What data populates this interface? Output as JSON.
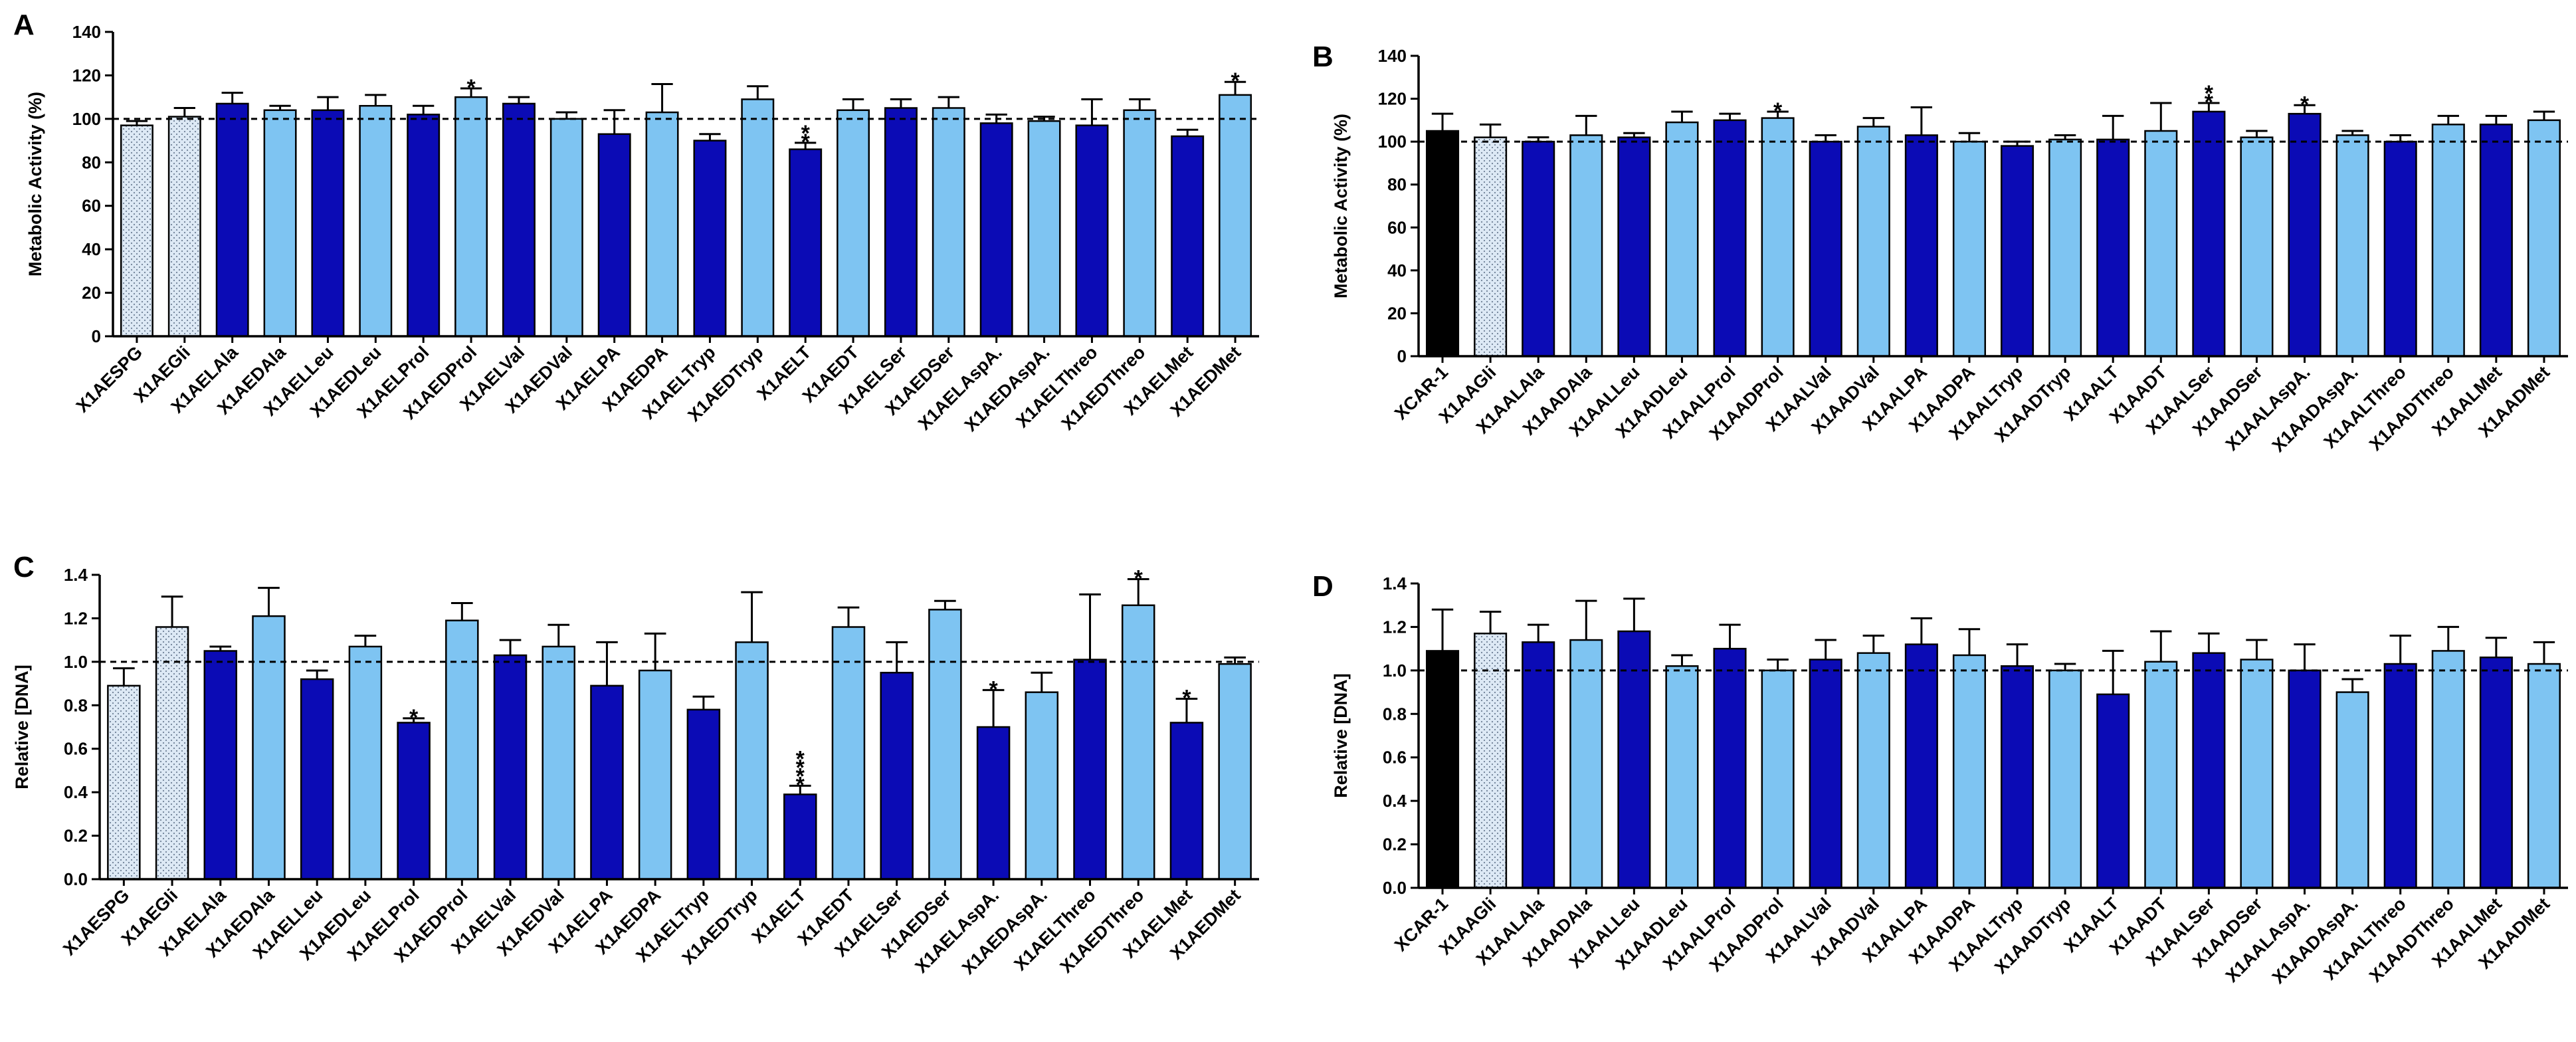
{
  "colors": {
    "dark_blue": "#0b0bb5",
    "light_blue": "#7ec4f2",
    "dotted_fill": "#dde9f5",
    "black": "#000000",
    "outline": "#000000"
  },
  "chart_data": [
    {
      "type": "bar",
      "panel": "A",
      "title": "",
      "xlabel": "",
      "ylabel": "Metabolic Activity (%)",
      "ylim": [
        0,
        140
      ],
      "yticks": [
        0,
        20,
        40,
        60,
        80,
        100,
        120,
        140
      ],
      "ytick_labels": [
        "0",
        "20",
        "40",
        "60",
        "80",
        "100",
        "120",
        "140"
      ],
      "reference_line": 100,
      "categories": [
        "X1AESPG",
        "X1AEGli",
        "X1AELAla",
        "X1AEDAla",
        "X1AELLeu",
        "X1AEDLeu",
        "X1AELProl",
        "X1AEDProl",
        "X1AELVal",
        "X1AEDVal",
        "X1AELPA",
        "X1AEDPA",
        "X1AELTryp",
        "X1AEDTryp",
        "X1AELT",
        "X1AEDT",
        "X1AELSer",
        "X1AEDSer",
        "X1AELAspA.",
        "X1AEDAspA.",
        "X1AELThreo",
        "X1AEDThreo",
        "X1AELMet",
        "X1AEDMet"
      ],
      "values": [
        97,
        101,
        107,
        104,
        104,
        106,
        102,
        110,
        107,
        100,
        93,
        103,
        90,
        109,
        86,
        104,
        105,
        105,
        98,
        99,
        97,
        104,
        92,
        111
      ],
      "errors": [
        2,
        4,
        5,
        2,
        6,
        5,
        4,
        4,
        3,
        3,
        11,
        13,
        3,
        6,
        3,
        5,
        4,
        5,
        4,
        2,
        12,
        5,
        3,
        6
      ],
      "fills": [
        "dotted",
        "dotted",
        "dark",
        "light",
        "dark",
        "light",
        "dark",
        "light",
        "dark",
        "light",
        "dark",
        "light",
        "dark",
        "light",
        "dark",
        "light",
        "dark",
        "light",
        "dark",
        "light",
        "dark",
        "light",
        "dark",
        "light"
      ],
      "significance": [
        "",
        "",
        "",
        "",
        "",
        "",
        "",
        "*",
        "",
        "",
        "",
        "",
        "",
        "",
        "**",
        "",
        "",
        "",
        "",
        "",
        "",
        "",
        "",
        "*"
      ]
    },
    {
      "type": "bar",
      "panel": "B",
      "title": "",
      "xlabel": "",
      "ylabel": "Metabolic Activity (%)",
      "ylim": [
        0,
        140
      ],
      "yticks": [
        0,
        20,
        40,
        60,
        80,
        100,
        120,
        140
      ],
      "ytick_labels": [
        "0",
        "20",
        "40",
        "60",
        "80",
        "100",
        "120",
        "140"
      ],
      "reference_line": 100,
      "categories": [
        "XCAR-1",
        "X1AAGli",
        "X1AALAla",
        "X1AADAla",
        "X1AALLeu",
        "X1AADLeu",
        "X1AALProl",
        "X1AADProl",
        "X1AALVal",
        "X1AADVal",
        "X1AALPA",
        "X1AADPA",
        "X1AALTryp",
        "X1AADTryp",
        "X1AALT",
        "X1AADT",
        "X1AALSer",
        "X1AADSer",
        "X1AALAspA.",
        "X1AADAspA.",
        "X1AALThreo",
        "X1AADThreo",
        "X1AALMet",
        "X1AADMet"
      ],
      "values": [
        105,
        102,
        100,
        103,
        102,
        109,
        110,
        111,
        100,
        107,
        103,
        100,
        98,
        101,
        101,
        105,
        114,
        102,
        113,
        103,
        100,
        108,
        108,
        110
      ],
      "errors": [
        8,
        6,
        2,
        9,
        2,
        5,
        3,
        3,
        3,
        4,
        13,
        4,
        2,
        2,
        11,
        13,
        4,
        3,
        4,
        2,
        3,
        4,
        4,
        4
      ],
      "fills": [
        "black",
        "dotted",
        "dark",
        "light",
        "dark",
        "light",
        "dark",
        "light",
        "dark",
        "light",
        "dark",
        "light",
        "dark",
        "light",
        "dark",
        "light",
        "dark",
        "light",
        "dark",
        "light",
        "dark",
        "light",
        "dark",
        "light"
      ],
      "significance": [
        "",
        "",
        "",
        "",
        "",
        "",
        "",
        "*",
        "",
        "",
        "",
        "",
        "",
        "",
        "",
        "",
        "**",
        "",
        "*",
        "",
        "",
        "",
        "",
        ""
      ]
    },
    {
      "type": "bar",
      "panel": "C",
      "title": "",
      "xlabel": "",
      "ylabel": "Relative [DNA]",
      "ylim": [
        0,
        1.4
      ],
      "yticks": [
        0,
        0.2,
        0.4,
        0.6,
        0.8,
        1.0,
        1.2,
        1.4
      ],
      "ytick_labels": [
        "0.0",
        "0.2",
        "0.4",
        "0.6",
        "0.8",
        "1.0",
        "1.2",
        "1.4"
      ],
      "reference_line": 1.0,
      "categories": [
        "X1AESPG",
        "X1AEGli",
        "X1AELAla",
        "X1AEDAla",
        "X1AELLeu",
        "X1AEDLeu",
        "X1AELProl",
        "X1AEDProl",
        "X1AELVal",
        "X1AEDVal",
        "X1AELPA",
        "X1AEDPA",
        "X1AELTryp",
        "X1AEDTryp",
        "X1AELT",
        "X1AEDT",
        "X1AELSer",
        "X1AEDSer",
        "X1AELAspA.",
        "X1AEDAspA.",
        "X1AELThreo",
        "X1AEDThreo",
        "X1AELMet",
        "X1AEDMet"
      ],
      "values": [
        0.89,
        1.16,
        1.05,
        1.21,
        0.92,
        1.07,
        0.72,
        1.19,
        1.03,
        1.07,
        0.89,
        0.96,
        0.78,
        1.09,
        0.39,
        1.16,
        0.95,
        1.24,
        0.7,
        0.86,
        1.01,
        1.26,
        0.72,
        0.99
      ],
      "errors": [
        0.08,
        0.14,
        0.02,
        0.13,
        0.04,
        0.05,
        0.02,
        0.08,
        0.07,
        0.1,
        0.2,
        0.17,
        0.06,
        0.23,
        0.04,
        0.09,
        0.14,
        0.04,
        0.17,
        0.09,
        0.3,
        0.12,
        0.11,
        0.03
      ],
      "fills": [
        "dotted",
        "dotted",
        "dark",
        "light",
        "dark",
        "light",
        "dark",
        "light",
        "dark",
        "light",
        "dark",
        "light",
        "dark",
        "light",
        "dark",
        "light",
        "dark",
        "light",
        "dark",
        "light",
        "dark",
        "light",
        "dark",
        "light"
      ],
      "significance": [
        "",
        "",
        "",
        "",
        "",
        "",
        "*",
        "",
        "",
        "",
        "",
        "",
        "",
        "",
        "****",
        "",
        "",
        "",
        "*",
        "",
        "",
        "*",
        "*",
        ""
      ]
    },
    {
      "type": "bar",
      "panel": "D",
      "title": "",
      "xlabel": "",
      "ylabel": "Relative [DNA]",
      "ylim": [
        0,
        1.4
      ],
      "yticks": [
        0,
        0.2,
        0.4,
        0.6,
        0.8,
        1.0,
        1.2,
        1.4
      ],
      "ytick_labels": [
        "0.0",
        "0.2",
        "0.4",
        "0.6",
        "0.8",
        "1.0",
        "1.2",
        "1.4"
      ],
      "reference_line": 1.0,
      "categories": [
        "XCAR-1",
        "X1AAGli",
        "X1AALAla",
        "X1AADAla",
        "X1AALLeu",
        "X1AADLeu",
        "X1AALProl",
        "X1AADProl",
        "X1AALVal",
        "X1AADVal",
        "X1AALPA",
        "X1AADPA",
        "X1AALTryp",
        "X1AADTryp",
        "X1AALT",
        "X1AADT",
        "X1AALSer",
        "X1AADSer",
        "X1AALAspA.",
        "X1AADAspA.",
        "X1AALThreo",
        "X1AADThreo",
        "X1AALMet",
        "X1AADMet"
      ],
      "values": [
        1.09,
        1.17,
        1.13,
        1.14,
        1.18,
        1.02,
        1.1,
        1.0,
        1.05,
        1.08,
        1.12,
        1.07,
        1.02,
        1.0,
        0.89,
        1.04,
        1.08,
        1.05,
        1.0,
        0.9,
        1.03,
        1.09,
        1.06,
        1.03
      ],
      "errors": [
        0.19,
        0.1,
        0.08,
        0.18,
        0.15,
        0.05,
        0.11,
        0.05,
        0.09,
        0.08,
        0.12,
        0.12,
        0.1,
        0.03,
        0.2,
        0.14,
        0.09,
        0.09,
        0.12,
        0.06,
        0.13,
        0.11,
        0.09,
        0.1
      ],
      "fills": [
        "black",
        "dotted",
        "dark",
        "light",
        "dark",
        "light",
        "dark",
        "light",
        "dark",
        "light",
        "dark",
        "light",
        "dark",
        "light",
        "dark",
        "light",
        "dark",
        "light",
        "dark",
        "light",
        "dark",
        "light",
        "dark",
        "light"
      ],
      "significance": [
        "",
        "",
        "",
        "",
        "",
        "",
        "",
        "",
        "",
        "",
        "",
        "",
        "",
        "",
        "",
        "",
        "",
        "",
        "",
        "",
        "",
        "",
        "",
        ""
      ]
    }
  ]
}
